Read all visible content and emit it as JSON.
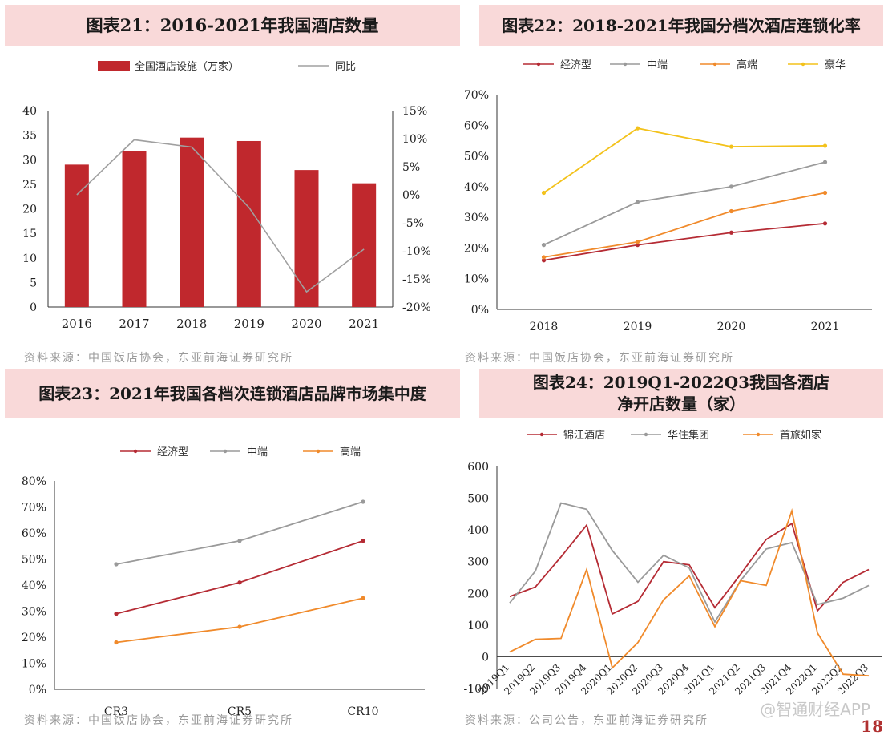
{
  "charts": [
    {
      "id": "c21",
      "title": "图表21：2016-2021年我国酒店数量",
      "source": "资料来源：中国饭店协会，东亚前海证券研究所",
      "chart_data": {
        "type": "bar",
        "categories": [
          "2016",
          "2017",
          "2018",
          "2019",
          "2020",
          "2021"
        ],
        "series": [
          {
            "name": "全国酒店设施（万家）",
            "type": "bar",
            "axis": "left",
            "color": "#c0282d",
            "values": [
              29,
              31.8,
              34.5,
              33.8,
              27.9,
              25.2
            ]
          },
          {
            "name": "同比",
            "type": "line",
            "axis": "right",
            "color": "#a0a0a0",
            "values": [
              0,
              9.8,
              8.5,
              -2.3,
              -17.3,
              -9.7
            ]
          }
        ],
        "yleft": {
          "min": 0,
          "max": 40,
          "ticks": [
            "0",
            "5",
            "10",
            "15",
            "20",
            "25",
            "30",
            "35",
            "40"
          ]
        },
        "yright": {
          "min": -20,
          "max": 15,
          "ticks": [
            "-20%",
            "-15%",
            "-10%",
            "-5%",
            "0%",
            "5%",
            "10%",
            "15%"
          ]
        },
        "legend": "top"
      }
    },
    {
      "id": "c22",
      "title": "图表22：2018-2021年我国分档次酒店连锁化率",
      "source": "资料来源：中国饭店协会，东亚前海证券研究所",
      "chart_data": {
        "type": "line",
        "categories": [
          "2018",
          "2019",
          "2020",
          "2021"
        ],
        "series": [
          {
            "name": "经济型",
            "color": "#b52b34",
            "values": [
              16,
              21,
              25,
              28
            ]
          },
          {
            "name": "中端",
            "color": "#9a9a9a",
            "values": [
              21,
              35,
              40,
              48
            ]
          },
          {
            "name": "高端",
            "color": "#f08a2b",
            "values": [
              17,
              22,
              32,
              38
            ]
          },
          {
            "name": "豪华",
            "color": "#f3c21b",
            "values": [
              38,
              59,
              53,
              53.3
            ]
          }
        ],
        "y": {
          "min": 0,
          "max": 70,
          "ticks": [
            "0%",
            "10%",
            "20%",
            "30%",
            "40%",
            "50%",
            "60%",
            "70%"
          ]
        },
        "legend": "top"
      }
    },
    {
      "id": "c23",
      "title": "图表23：2021年我国各档次连锁酒店品牌市场集中度",
      "source": "资料来源：中国饭店协会，东亚前海证券研究所",
      "chart_data": {
        "type": "line",
        "categories": [
          "CR3",
          "CR5",
          "CR10"
        ],
        "series": [
          {
            "name": "经济型",
            "color": "#b52b34",
            "values": [
              29,
              41,
              57
            ]
          },
          {
            "name": "中端",
            "color": "#9a9a9a",
            "values": [
              48,
              57,
              72
            ]
          },
          {
            "name": "高端",
            "color": "#f08a2b",
            "values": [
              18,
              24,
              35
            ]
          }
        ],
        "y": {
          "min": 0,
          "max": 80,
          "ticks": [
            "0%",
            "10%",
            "20%",
            "30%",
            "40%",
            "50%",
            "60%",
            "70%",
            "80%"
          ]
        },
        "legend": "top"
      }
    },
    {
      "id": "c24",
      "title": "图表24：2019Q1-2022Q3我国各酒店净开店数量（家）",
      "source": "资料来源：公司公告，东亚前海证券研究所",
      "chart_data": {
        "type": "line",
        "categories": [
          "2019Q1",
          "2019Q2",
          "2019Q3",
          "2019Q4",
          "2020Q1",
          "2020Q2",
          "2020Q3",
          "2020Q4",
          "2021Q1",
          "2021Q2",
          "2021Q3",
          "2021Q4",
          "2022Q1",
          "2022Q2",
          "2022Q3"
        ],
        "series": [
          {
            "name": "锦江酒店",
            "color": "#b52b34",
            "values": [
              190,
              220,
              315,
              415,
              135,
              175,
              300,
              290,
              155,
              260,
              370,
              420,
              145,
              235,
              275
            ]
          },
          {
            "name": "华住集团",
            "color": "#9a9a9a",
            "values": [
              170,
              270,
              485,
              465,
              335,
              235,
              320,
              280,
              110,
              240,
              340,
              360,
              165,
              185,
              225
            ]
          },
          {
            "name": "首旅如家",
            "color": "#f08a2b",
            "values": [
              15,
              55,
              58,
              275,
              -35,
              45,
              180,
              255,
              95,
              240,
              225,
              460,
              75,
              -55,
              -60
            ]
          }
        ],
        "y": {
          "min": -100,
          "max": 600,
          "ticks": [
            "-100",
            "0",
            "100",
            "200",
            "300",
            "400",
            "500",
            "600"
          ]
        },
        "legend": "top"
      }
    }
  ],
  "watermark": "@智通财经APP",
  "page_number": "18"
}
